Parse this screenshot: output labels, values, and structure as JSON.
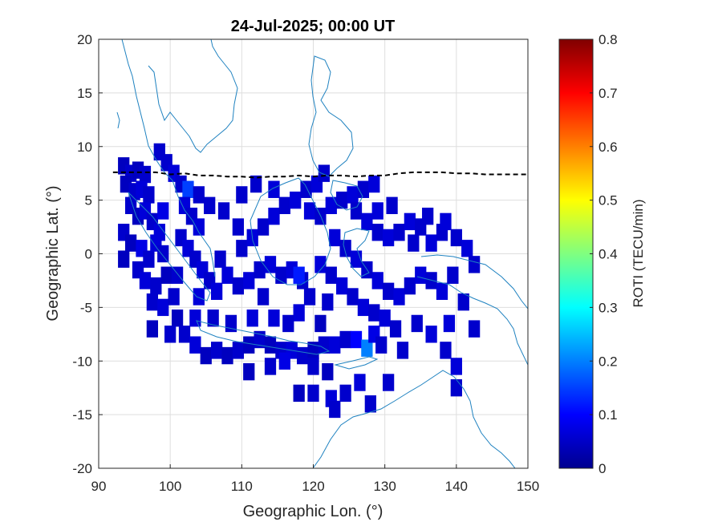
{
  "chart_data": {
    "type": "heatmap",
    "title": "24-Jul-2025; 00:00 UT",
    "xlabel": "Geographic Lon. (°)",
    "ylabel": "Geographic Lat. (°)",
    "xlim": [
      90,
      150
    ],
    "ylim": [
      -20,
      20
    ],
    "xticks": [
      "90",
      "100",
      "110",
      "120",
      "130",
      "140",
      "150"
    ],
    "yticks": [
      "20",
      "15",
      "10",
      "5",
      "0",
      "-5",
      "-10",
      "-15",
      "-20"
    ],
    "grid": true,
    "colorbar": {
      "label": "ROTI (TECU/min)",
      "range": [
        0,
        0.8
      ],
      "ticks": [
        "0.8",
        "0.7",
        "0.6",
        "0.5",
        "0.4",
        "0.3",
        "0.2",
        "0.1",
        "0"
      ],
      "colormap": "jet"
    },
    "cells": [
      [
        93.5,
        8.2,
        0.05
      ],
      [
        94.5,
        7.5,
        0.06
      ],
      [
        95.5,
        7.8,
        0.05
      ],
      [
        96.5,
        7.4,
        0.06
      ],
      [
        93.8,
        6.5,
        0.05
      ],
      [
        95.0,
        5.8,
        0.06
      ],
      [
        96.0,
        6.0,
        0.07
      ],
      [
        97.0,
        5.5,
        0.06
      ],
      [
        94.5,
        4.5,
        0.06
      ],
      [
        95.5,
        3.5,
        0.05
      ],
      [
        96.5,
        4.0,
        0.07
      ],
      [
        97.5,
        3.0,
        0.06
      ],
      [
        98.5,
        2.0,
        0.07
      ],
      [
        93.5,
        2.0,
        0.06
      ],
      [
        94.5,
        1.0,
        0.05
      ],
      [
        96.0,
        0.5,
        0.08
      ],
      [
        97.0,
        -0.5,
        0.06
      ],
      [
        98.0,
        1.0,
        0.07
      ],
      [
        99.0,
        0.0,
        0.06
      ],
      [
        95.5,
        -1.5,
        0.06
      ],
      [
        96.5,
        -2.5,
        0.07
      ],
      [
        98.0,
        -3.0,
        0.06
      ],
      [
        99.5,
        -2.0,
        0.05
      ],
      [
        97.5,
        -4.5,
        0.06
      ],
      [
        99.0,
        -5.0,
        0.07
      ],
      [
        100.5,
        -4.0,
        0.06
      ],
      [
        101.0,
        -6.0,
        0.05
      ],
      [
        102.0,
        -7.5,
        0.06
      ],
      [
        103.5,
        -8.5,
        0.07
      ],
      [
        105.0,
        -9.5,
        0.05
      ],
      [
        106.5,
        -9.0,
        0.06
      ],
      [
        108.0,
        -9.5,
        0.05
      ],
      [
        109.5,
        -9.0,
        0.06
      ],
      [
        111.0,
        -8.5,
        0.05
      ],
      [
        112.5,
        -8.0,
        0.06
      ],
      [
        114.0,
        -8.5,
        0.05
      ],
      [
        115.5,
        -9.0,
        0.06
      ],
      [
        117.0,
        -9.0,
        0.07
      ],
      [
        118.5,
        -9.5,
        0.06
      ],
      [
        120.0,
        -9.0,
        0.05
      ],
      [
        121.5,
        -8.5,
        0.06
      ],
      [
        123.0,
        -8.5,
        0.07
      ],
      [
        124.5,
        -8.0,
        0.06
      ],
      [
        126.0,
        -8.0,
        0.1
      ],
      [
        127.5,
        -8.8,
        0.2
      ],
      [
        128.5,
        -7.5,
        0.08
      ],
      [
        129.5,
        -8.5,
        0.06
      ],
      [
        111.0,
        -11.0,
        0.05
      ],
      [
        114.0,
        -10.5,
        0.06
      ],
      [
        116.0,
        -10.0,
        0.08
      ],
      [
        120.0,
        -10.5,
        0.06
      ],
      [
        122.0,
        -11.0,
        0.05
      ],
      [
        98.5,
        9.5,
        0.06
      ],
      [
        99.5,
        8.5,
        0.06
      ],
      [
        100.5,
        7.5,
        0.07
      ],
      [
        101.5,
        6.5,
        0.06
      ],
      [
        102.5,
        6.0,
        0.15
      ],
      [
        102.0,
        4.5,
        0.07
      ],
      [
        103.0,
        3.5,
        0.06
      ],
      [
        104.0,
        2.5,
        0.07
      ],
      [
        101.5,
        1.5,
        0.06
      ],
      [
        102.5,
        0.5,
        0.07
      ],
      [
        103.5,
        -0.5,
        0.06
      ],
      [
        104.5,
        -1.5,
        0.07
      ],
      [
        105.5,
        -2.5,
        0.06
      ],
      [
        106.5,
        -3.5,
        0.07
      ],
      [
        104.0,
        5.5,
        0.06
      ],
      [
        105.5,
        4.5,
        0.06
      ],
      [
        107.0,
        -0.5,
        0.06
      ],
      [
        108.0,
        -2.0,
        0.07
      ],
      [
        109.5,
        -3.0,
        0.06
      ],
      [
        111.0,
        -2.5,
        0.07
      ],
      [
        112.5,
        -1.5,
        0.06
      ],
      [
        114.0,
        -1.0,
        0.07
      ],
      [
        115.5,
        -2.0,
        0.06
      ],
      [
        117.0,
        -1.5,
        0.07
      ],
      [
        118.5,
        -2.5,
        0.06
      ],
      [
        110.0,
        0.5,
        0.06
      ],
      [
        111.5,
        1.5,
        0.07
      ],
      [
        113.0,
        2.5,
        0.06
      ],
      [
        114.5,
        3.5,
        0.07
      ],
      [
        116.0,
        4.5,
        0.06
      ],
      [
        117.5,
        5.0,
        0.07
      ],
      [
        119.0,
        6.0,
        0.06
      ],
      [
        120.5,
        6.5,
        0.07
      ],
      [
        121.5,
        7.5,
        0.06
      ],
      [
        119.5,
        4.0,
        0.07
      ],
      [
        121.0,
        3.5,
        0.06
      ],
      [
        122.5,
        4.5,
        0.07
      ],
      [
        124.0,
        5.0,
        0.06
      ],
      [
        125.5,
        5.5,
        0.07
      ],
      [
        127.0,
        6.0,
        0.06
      ],
      [
        128.5,
        6.5,
        0.07
      ],
      [
        126.0,
        4.0,
        0.06
      ],
      [
        127.5,
        3.0,
        0.07
      ],
      [
        129.0,
        2.0,
        0.06
      ],
      [
        130.5,
        1.5,
        0.07
      ],
      [
        132.0,
        2.0,
        0.06
      ],
      [
        133.5,
        3.0,
        0.07
      ],
      [
        135.0,
        2.5,
        0.06
      ],
      [
        136.5,
        1.0,
        0.07
      ],
      [
        138.0,
        2.0,
        0.06
      ],
      [
        123.0,
        1.5,
        0.07
      ],
      [
        124.5,
        0.5,
        0.06
      ],
      [
        126.0,
        -0.5,
        0.07
      ],
      [
        127.5,
        -1.5,
        0.06
      ],
      [
        129.0,
        -2.5,
        0.07
      ],
      [
        130.5,
        -3.5,
        0.06
      ],
      [
        132.0,
        -4.0,
        0.07
      ],
      [
        133.5,
        -3.0,
        0.06
      ],
      [
        135.0,
        -2.0,
        0.07
      ],
      [
        136.5,
        -2.5,
        0.06
      ],
      [
        138.0,
        -3.5,
        0.07
      ],
      [
        139.5,
        -2.0,
        0.06
      ],
      [
        121.0,
        -1.0,
        0.07
      ],
      [
        122.5,
        -2.0,
        0.06
      ],
      [
        124.0,
        -3.0,
        0.07
      ],
      [
        125.5,
        -4.0,
        0.06
      ],
      [
        127.0,
        -5.0,
        0.07
      ],
      [
        128.5,
        -5.5,
        0.06
      ],
      [
        130.0,
        -6.0,
        0.07
      ],
      [
        131.5,
        -7.0,
        0.06
      ],
      [
        119.5,
        -4.0,
        0.06
      ],
      [
        118.0,
        -5.5,
        0.07
      ],
      [
        116.5,
        -6.5,
        0.06
      ],
      [
        114.5,
        -6.0,
        0.07
      ],
      [
        121.0,
        -6.5,
        0.05
      ],
      [
        110.0,
        5.5,
        0.06
      ],
      [
        112.0,
        6.5,
        0.06
      ],
      [
        114.5,
        6.0,
        0.07
      ],
      [
        136.0,
        3.5,
        0.06
      ],
      [
        138.5,
        3.0,
        0.07
      ],
      [
        140.0,
        1.5,
        0.06
      ],
      [
        141.5,
        0.5,
        0.07
      ],
      [
        142.5,
        -1.0,
        0.06
      ],
      [
        141.0,
        -4.5,
        0.06
      ],
      [
        139.0,
        -6.5,
        0.07
      ],
      [
        142.5,
        -7.0,
        0.06
      ],
      [
        134.5,
        -6.5,
        0.06
      ],
      [
        136.5,
        -7.5,
        0.07
      ],
      [
        132.5,
        -9.0,
        0.06
      ],
      [
        138.5,
        -9.0,
        0.06
      ],
      [
        140.0,
        -10.5,
        0.07
      ],
      [
        140.0,
        -12.5,
        0.06
      ],
      [
        130.5,
        -12.0,
        0.06
      ],
      [
        126.5,
        -12.0,
        0.07
      ],
      [
        124.5,
        -13.0,
        0.06
      ],
      [
        122.5,
        -13.5,
        0.07
      ],
      [
        120.0,
        -13.0,
        0.06
      ],
      [
        118.0,
        -13.0,
        0.05
      ],
      [
        128.0,
        -14.0,
        0.06
      ],
      [
        123.0,
        -14.5,
        0.06
      ],
      [
        118.0,
        -2.0,
        0.12
      ],
      [
        99.0,
        4.0,
        0.08
      ],
      [
        93.5,
        -0.5,
        0.05
      ],
      [
        134.0,
        1.0,
        0.06
      ],
      [
        109.5,
        2.5,
        0.06
      ],
      [
        107.5,
        4.0,
        0.06
      ],
      [
        104.0,
        -4.0,
        0.07
      ],
      [
        101.0,
        -2.0,
        0.06
      ],
      [
        131.0,
        4.5,
        0.06
      ],
      [
        129.0,
        4.0,
        0.07
      ],
      [
        122.0,
        -4.5,
        0.06
      ],
      [
        113.0,
        -4.0,
        0.06
      ],
      [
        111.5,
        -6.0,
        0.07
      ],
      [
        108.5,
        -6.5,
        0.06
      ],
      [
        106.0,
        -6.0,
        0.06
      ],
      [
        103.5,
        -6.0,
        0.07
      ],
      [
        100.0,
        -7.5,
        0.06
      ],
      [
        97.5,
        -7.0,
        0.05
      ]
    ],
    "boundary_line": [
      [
        92,
        7.6
      ],
      [
        95,
        7.6
      ],
      [
        98,
        7.6
      ],
      [
        100,
        7.4
      ],
      [
        102,
        7.5
      ],
      [
        104,
        7.3
      ],
      [
        106,
        7.3
      ],
      [
        108,
        7.2
      ],
      [
        110,
        7.2
      ],
      [
        112,
        7.1
      ],
      [
        114,
        7.2
      ],
      [
        116,
        7.2
      ],
      [
        118,
        7.3
      ],
      [
        120,
        7.2
      ],
      [
        122,
        7.3
      ],
      [
        124,
        7.3
      ],
      [
        126,
        7.2
      ],
      [
        128,
        7.3
      ],
      [
        130,
        7.3
      ],
      [
        132,
        7.5
      ],
      [
        134,
        7.6
      ],
      [
        136,
        7.6
      ],
      [
        138,
        7.6
      ],
      [
        140,
        7.5
      ],
      [
        142,
        7.5
      ],
      [
        144,
        7.4
      ],
      [
        146,
        7.4
      ],
      [
        148,
        7.4
      ],
      [
        150,
        7.4
      ]
    ]
  }
}
